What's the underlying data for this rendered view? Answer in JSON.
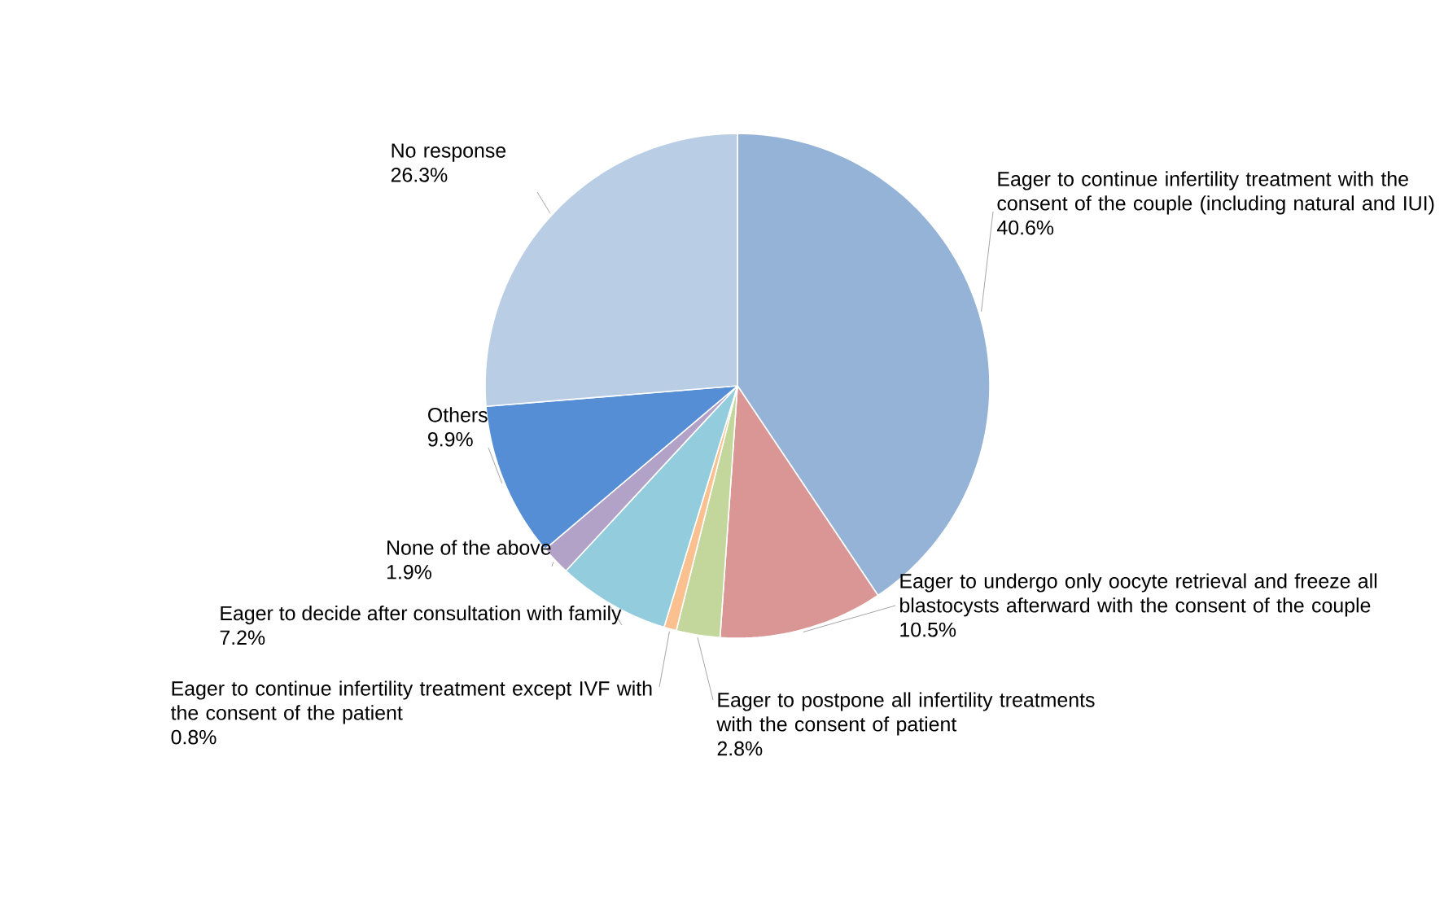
{
  "chart_data": {
    "type": "pie",
    "categories": [
      "Eager to continue infertility treatment with the consent of the couple (including natural and IUI)",
      "Eager to undergo only oocyte retrieval and freeze all blastocysts afterward with the consent of the couple",
      "Eager to postpone all infertility treatments with the consent of patient",
      "Eager to continue infertility treatment except IVF with the consent of the patient",
      "Eager to decide after consultation with family",
      "None of the above",
      "Others",
      "No response"
    ],
    "values": [
      40.6,
      10.5,
      2.8,
      0.8,
      7.2,
      1.9,
      9.9,
      26.3
    ],
    "value_labels": [
      "40.6%",
      "10.5%",
      "2.8%",
      "0.8%",
      "7.2%",
      "1.9%",
      "9.9%",
      "26.3%"
    ],
    "colors": [
      "#95b3d7",
      "#d99694",
      "#c3d69b",
      "#fac090",
      "#93cddd",
      "#b3a2c7",
      "#558ed5",
      "#b9cde5"
    ],
    "legend": false
  }
}
